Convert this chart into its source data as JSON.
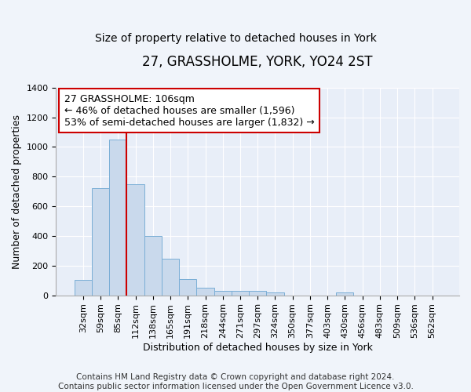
{
  "title": "27, GRASSHOLME, YORK, YO24 2ST",
  "subtitle": "Size of property relative to detached houses in York",
  "xlabel": "Distribution of detached houses by size in York",
  "ylabel": "Number of detached properties",
  "categories": [
    "32sqm",
    "59sqm",
    "85sqm",
    "112sqm",
    "138sqm",
    "165sqm",
    "191sqm",
    "218sqm",
    "244sqm",
    "271sqm",
    "297sqm",
    "324sqm",
    "350sqm",
    "377sqm",
    "403sqm",
    "430sqm",
    "456sqm",
    "483sqm",
    "509sqm",
    "536sqm",
    "562sqm"
  ],
  "values": [
    105,
    720,
    1050,
    750,
    400,
    245,
    110,
    50,
    28,
    28,
    28,
    20,
    0,
    0,
    0,
    20,
    0,
    0,
    0,
    0,
    0
  ],
  "bar_color": "#c9d9ec",
  "bar_edge_color": "#7aaed6",
  "vline_index": 3,
  "vline_color": "#cc0000",
  "annotation_line1": "27 GRASSHOLME: 106sqm",
  "annotation_line2": "← 46% of detached houses are smaller (1,596)",
  "annotation_line3": "53% of semi-detached houses are larger (1,832) →",
  "annotation_box_facecolor": "#ffffff",
  "annotation_box_edgecolor": "#cc0000",
  "ylim": [
    0,
    1400
  ],
  "yticks": [
    0,
    200,
    400,
    600,
    800,
    1000,
    1200,
    1400
  ],
  "footer": "Contains HM Land Registry data © Crown copyright and database right 2024.\nContains public sector information licensed under the Open Government Licence v3.0.",
  "bg_color": "#f0f4fa",
  "plot_bg_color": "#e8eef8",
  "title_fontsize": 12,
  "subtitle_fontsize": 10,
  "axis_label_fontsize": 9,
  "tick_fontsize": 8,
  "footer_fontsize": 7.5,
  "annotation_fontsize": 9
}
